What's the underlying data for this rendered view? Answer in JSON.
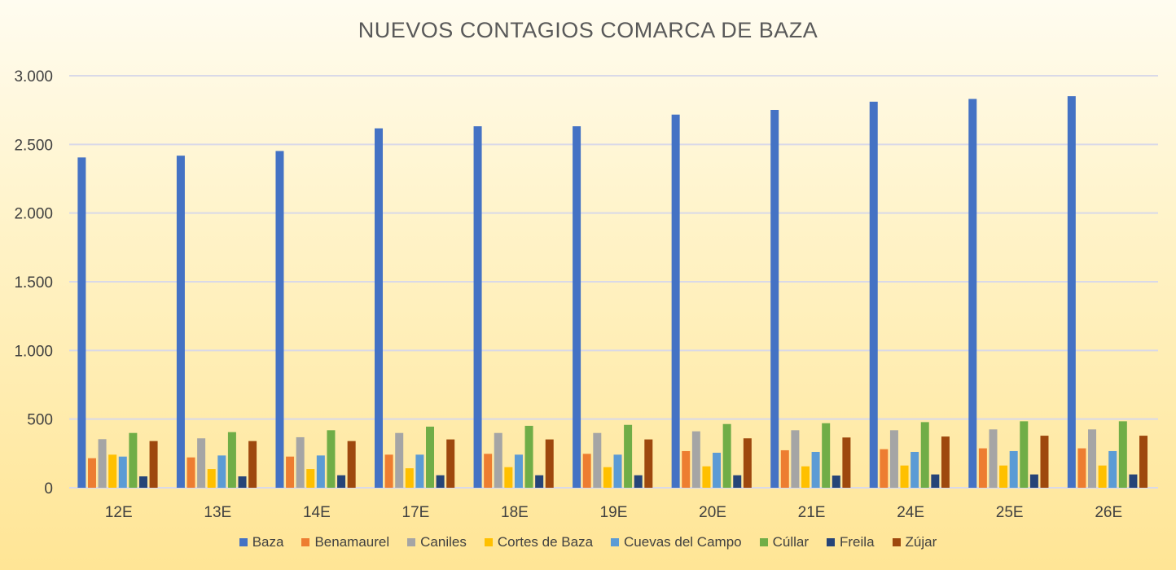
{
  "chart_data": {
    "type": "bar",
    "title": "NUEVOS CONTAGIOS COMARCA DE BAZA",
    "xlabel": "",
    "ylabel": "",
    "ylim": [
      0,
      3000
    ],
    "yticks": [
      0,
      500,
      1000,
      1500,
      2000,
      2500,
      3000
    ],
    "ytick_labels": [
      "0",
      "500",
      "1.000",
      "1.500",
      "2.000",
      "2.500",
      "3.000"
    ],
    "grid": true,
    "legend_position": "bottom",
    "categories": [
      "12E",
      "13E",
      "14E",
      "17E",
      "18E",
      "19E",
      "20E",
      "21E",
      "24E",
      "25E",
      "26E"
    ],
    "series": [
      {
        "name": "Baza",
        "color": "#4472c4",
        "values": [
          2405,
          2418,
          2452,
          2617,
          2632,
          2632,
          2717,
          2751,
          2811,
          2831,
          2851
        ]
      },
      {
        "name": "Benamaurel",
        "color": "#ed7d31",
        "values": [
          215,
          221,
          227,
          241,
          247,
          247,
          267,
          273,
          281,
          287,
          287
        ]
      },
      {
        "name": "Caniles",
        "color": "#a5a5a5",
        "values": [
          354,
          360,
          368,
          399,
          399,
          399,
          411,
          419,
          419,
          425,
          425
        ]
      },
      {
        "name": "Cortes de Baza",
        "color": "#ffc000",
        "values": [
          241,
          136,
          136,
          142,
          150,
          150,
          156,
          156,
          162,
          162,
          162
        ]
      },
      {
        "name": "Cuevas del Campo",
        "color": "#5b9bd5",
        "values": [
          227,
          235,
          235,
          241,
          241,
          241,
          255,
          261,
          261,
          267,
          267
        ]
      },
      {
        "name": "Cúllar",
        "color": "#70ad47",
        "values": [
          399,
          405,
          419,
          445,
          451,
          458,
          464,
          470,
          478,
          484,
          484
        ]
      },
      {
        "name": "Freila",
        "color": "#264478",
        "values": [
          83,
          83,
          91,
          91,
          91,
          91,
          91,
          89,
          97,
          97,
          97
        ]
      },
      {
        "name": "Zújar",
        "color": "#9e480e",
        "values": [
          340,
          340,
          340,
          352,
          352,
          352,
          360,
          366,
          373,
          379,
          379
        ]
      }
    ]
  }
}
